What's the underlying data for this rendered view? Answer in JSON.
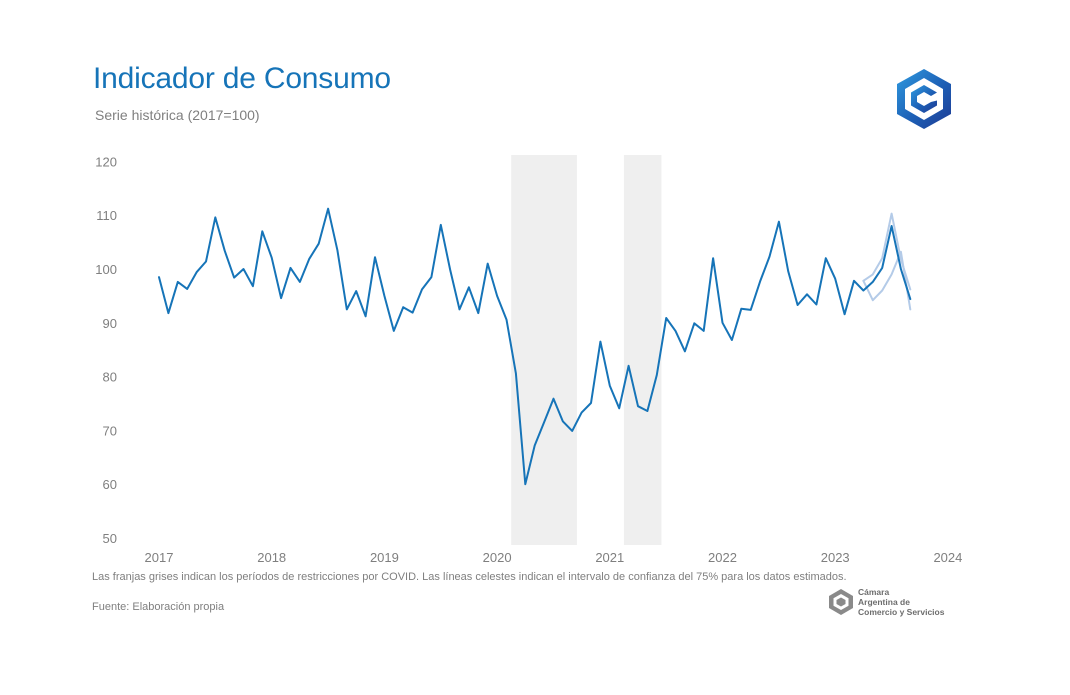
{
  "header": {
    "title": "Indicador de Consumo",
    "subtitle": "Serie histórica (2017=100)"
  },
  "footer": {
    "note": "Las franjas grises indican los períodos de restricciones por COVID. Las líneas celestes indican el intervalo de confianza del 75% para los datos estimados.",
    "source": "Fuente: Elaboración propia"
  },
  "logos": {
    "top_icon": "cube-logo-icon",
    "brand_icon": "cacys-logo-icon",
    "brand_name": "Cámara\nArgentina de\nComercio y Servicios"
  },
  "colors": {
    "series": "#1674b8",
    "confidence": "#b4cbe8",
    "restriction_band": "#efefef",
    "title": "#1674b8",
    "axis_text": "#7f7f7f"
  },
  "chart_data": {
    "type": "line",
    "title": "Indicador de Consumo",
    "subtitle": "Serie histórica (2017=100)",
    "xlabel": "",
    "ylabel": "",
    "x_start": "2017-01",
    "frequency": "monthly",
    "xlim": [
      "2017-01",
      "2024-01"
    ],
    "ylim": [
      50,
      120
    ],
    "x_ticks": [
      "2017",
      "2018",
      "2019",
      "2020",
      "2021",
      "2022",
      "2023",
      "2024"
    ],
    "y_ticks": [
      50,
      60,
      70,
      80,
      90,
      100,
      110,
      120
    ],
    "grid": false,
    "legend": "none",
    "series": [
      {
        "values": [
          98.5,
          91.8,
          97.6,
          96.3,
          99.4,
          101.4,
          109.6,
          103.4,
          98.4,
          100.0,
          96.8,
          107.0,
          102.1,
          94.6,
          100.2,
          97.6,
          101.9,
          104.7,
          111.2,
          103.5,
          92.5,
          95.9,
          91.2,
          102.2,
          95.0,
          88.5,
          92.9,
          91.9,
          96.2,
          98.5,
          108.2,
          99.9,
          92.5,
          96.6,
          91.8,
          101.0,
          95.0,
          90.6,
          80.6,
          60.0,
          67.2,
          71.5,
          75.9,
          71.7,
          69.9,
          73.3,
          75.1,
          86.5,
          78.3,
          74.1,
          82.0,
          74.5,
          73.6,
          80.3,
          90.9,
          88.5,
          84.7,
          89.9,
          88.5,
          102.0,
          90.0,
          86.8,
          92.6,
          92.4,
          97.7,
          102.3,
          108.8,
          99.6,
          93.3,
          95.3,
          93.4,
          102.0,
          98.2,
          91.6,
          97.8,
          96.0,
          97.6,
          100.2,
          108.0,
          100.0,
          94.4
        ]
      },
      {
        "name": "Intervalo de confianza 75% (superior)",
        "x_start": "2023-04",
        "values": [
          97.8,
          99.0,
          102.0,
          110.3,
          101.8,
          96.2
        ]
      },
      {
        "name": "Intervalo de confianza 75% (inferior)",
        "x_start": "2023-04",
        "values": [
          97.8,
          94.2,
          96.0,
          99.0,
          103.2,
          92.5
        ]
      }
    ],
    "shaded_periods": [
      {
        "start": "2020-03",
        "end": "2020-09"
      },
      {
        "start": "2021-03",
        "end": "2021-06"
      }
    ]
  }
}
